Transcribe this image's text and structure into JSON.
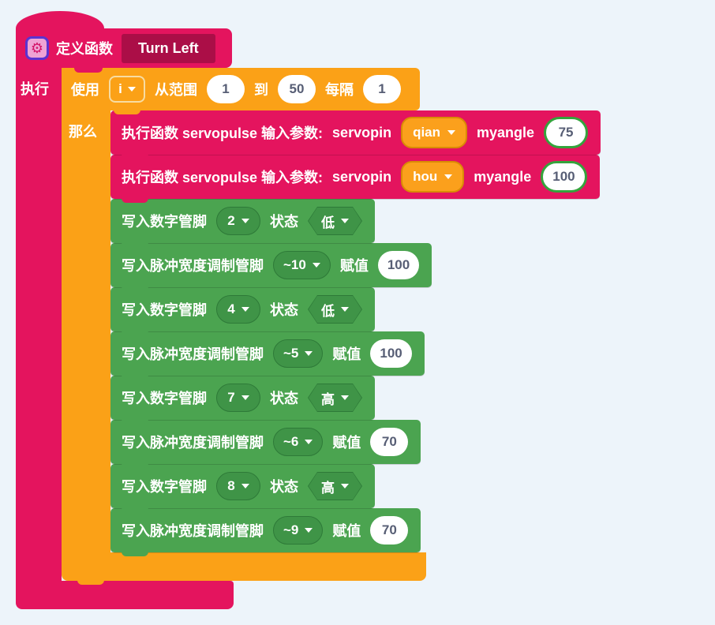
{
  "colors": {
    "canvas_bg": "#edf4fa",
    "function_pink": "#e4145e",
    "function_name_bg": "#ab0e47",
    "loop_orange": "#fba117",
    "pin_green": "#4ba450",
    "green_dropdown": "#3f9447",
    "value_ring_green": "#34a43c",
    "param_dropdown_border": "#d98b05",
    "input_text": "#575e75"
  },
  "icons": {
    "gear": "⚙"
  },
  "function_block": {
    "define_label": "定义函数",
    "name": "Turn Left",
    "exec_label": "执行"
  },
  "loop_block": {
    "use_label": "使用",
    "variable": "i",
    "range_label": "从范围",
    "from_value": "1",
    "to_label": "到",
    "to_value": "50",
    "step_label": "每隔",
    "step_value": "1",
    "then_label": "那么"
  },
  "stack": [
    {
      "type": "function-call",
      "label": "执行函数 servopulse 输入参数:",
      "param1_label": "servopin",
      "param1_value": "qian",
      "param2_label": "myangle",
      "param2_value": "75"
    },
    {
      "type": "function-call",
      "label": "执行函数 servopulse 输入参数:",
      "param1_label": "servopin",
      "param1_value": "hou",
      "param2_label": "myangle",
      "param2_value": "100"
    },
    {
      "type": "digital-write",
      "label": "写入数字管脚",
      "pin": "2",
      "state_label": "状态",
      "state": "低"
    },
    {
      "type": "pwm-write",
      "label": "写入脉冲宽度调制管脚",
      "pin": "~10",
      "value_label": "赋值",
      "value": "100"
    },
    {
      "type": "digital-write",
      "label": "写入数字管脚",
      "pin": "4",
      "state_label": "状态",
      "state": "低"
    },
    {
      "type": "pwm-write",
      "label": "写入脉冲宽度调制管脚",
      "pin": "~5",
      "value_label": "赋值",
      "value": "100"
    },
    {
      "type": "digital-write",
      "label": "写入数字管脚",
      "pin": "7",
      "state_label": "状态",
      "state": "高"
    },
    {
      "type": "pwm-write",
      "label": "写入脉冲宽度调制管脚",
      "pin": "~6",
      "value_label": "赋值",
      "value": "70"
    },
    {
      "type": "digital-write",
      "label": "写入数字管脚",
      "pin": "8",
      "state_label": "状态",
      "state": "高"
    },
    {
      "type": "pwm-write",
      "label": "写入脉冲宽度调制管脚",
      "pin": "~9",
      "value_label": "赋值",
      "value": "70"
    }
  ]
}
